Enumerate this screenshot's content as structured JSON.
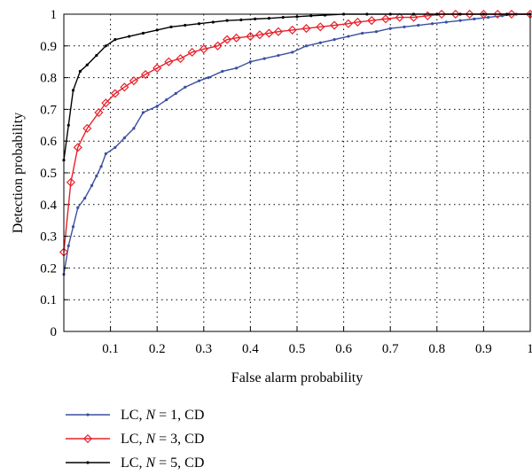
{
  "chart_data": {
    "type": "line",
    "title": "",
    "xlabel": "False alarm probability",
    "ylabel": "Detection probability",
    "xlim": [
      0,
      1
    ],
    "ylim": [
      0,
      1
    ],
    "xticks": [
      "0.1",
      "0.2",
      "0.3",
      "0.4",
      "0.5",
      "0.6",
      "0.7",
      "0.8",
      "0.9",
      "1"
    ],
    "yticks": [
      "0",
      "0.1",
      "0.2",
      "0.3",
      "0.4",
      "0.5",
      "0.6",
      "0.7",
      "0.8",
      "0.9",
      "1"
    ],
    "grid": true,
    "legend_position": "below",
    "series": [
      {
        "name": "LC, N = 1, CD",
        "legend_prefix": "LC, ",
        "legend_var": "N",
        "legend_suffix": " = 1, CD",
        "color": "#3b4fa0",
        "marker": "dot",
        "points": [
          [
            0.0,
            0.18
          ],
          [
            0.01,
            0.27
          ],
          [
            0.02,
            0.33
          ],
          [
            0.03,
            0.39
          ],
          [
            0.045,
            0.42
          ],
          [
            0.06,
            0.46
          ],
          [
            0.07,
            0.49
          ],
          [
            0.08,
            0.52
          ],
          [
            0.09,
            0.56
          ],
          [
            0.11,
            0.58
          ],
          [
            0.13,
            0.61
          ],
          [
            0.15,
            0.64
          ],
          [
            0.17,
            0.69
          ],
          [
            0.2,
            0.71
          ],
          [
            0.22,
            0.73
          ],
          [
            0.24,
            0.75
          ],
          [
            0.26,
            0.77
          ],
          [
            0.29,
            0.79
          ],
          [
            0.31,
            0.8
          ],
          [
            0.34,
            0.82
          ],
          [
            0.37,
            0.83
          ],
          [
            0.4,
            0.85
          ],
          [
            0.43,
            0.86
          ],
          [
            0.46,
            0.87
          ],
          [
            0.49,
            0.88
          ],
          [
            0.52,
            0.9
          ],
          [
            0.55,
            0.91
          ],
          [
            0.58,
            0.92
          ],
          [
            0.61,
            0.93
          ],
          [
            0.64,
            0.94
          ],
          [
            0.67,
            0.945
          ],
          [
            0.7,
            0.955
          ],
          [
            0.73,
            0.96
          ],
          [
            0.76,
            0.965
          ],
          [
            0.79,
            0.97
          ],
          [
            0.82,
            0.975
          ],
          [
            0.85,
            0.98
          ],
          [
            0.88,
            0.985
          ],
          [
            0.91,
            0.99
          ],
          [
            0.94,
            0.995
          ],
          [
            0.97,
            1.0
          ],
          [
            1.0,
            1.0
          ]
        ]
      },
      {
        "name": "LC, N = 3, CD",
        "legend_prefix": "LC, ",
        "legend_var": "N",
        "legend_suffix": " = 3, CD",
        "color": "#e8202a",
        "marker": "diamond",
        "points": [
          [
            0.0,
            0.25
          ],
          [
            0.015,
            0.47
          ],
          [
            0.03,
            0.58
          ],
          [
            0.05,
            0.64
          ],
          [
            0.075,
            0.69
          ],
          [
            0.09,
            0.72
          ],
          [
            0.11,
            0.75
          ],
          [
            0.13,
            0.77
          ],
          [
            0.15,
            0.79
          ],
          [
            0.175,
            0.81
          ],
          [
            0.2,
            0.83
          ],
          [
            0.225,
            0.85
          ],
          [
            0.25,
            0.86
          ],
          [
            0.275,
            0.88
          ],
          [
            0.3,
            0.89
          ],
          [
            0.33,
            0.9
          ],
          [
            0.35,
            0.92
          ],
          [
            0.37,
            0.925
          ],
          [
            0.4,
            0.93
          ],
          [
            0.42,
            0.935
          ],
          [
            0.44,
            0.94
          ],
          [
            0.46,
            0.945
          ],
          [
            0.49,
            0.95
          ],
          [
            0.52,
            0.955
          ],
          [
            0.55,
            0.96
          ],
          [
            0.58,
            0.965
          ],
          [
            0.61,
            0.97
          ],
          [
            0.63,
            0.975
          ],
          [
            0.66,
            0.98
          ],
          [
            0.69,
            0.985
          ],
          [
            0.72,
            0.99
          ],
          [
            0.75,
            0.99
          ],
          [
            0.78,
            0.995
          ],
          [
            0.81,
            1.0
          ],
          [
            0.84,
            1.0
          ],
          [
            0.87,
            1.0
          ],
          [
            0.9,
            1.0
          ],
          [
            0.93,
            1.0
          ],
          [
            0.96,
            1.0
          ],
          [
            1.0,
            1.0
          ]
        ]
      },
      {
        "name": "LC, N = 5, CD",
        "legend_prefix": "LC, ",
        "legend_var": "N",
        "legend_suffix": " = 5, CD",
        "color": "#000000",
        "marker": "dot",
        "points": [
          [
            0.0,
            0.54
          ],
          [
            0.01,
            0.65
          ],
          [
            0.02,
            0.76
          ],
          [
            0.035,
            0.82
          ],
          [
            0.05,
            0.84
          ],
          [
            0.07,
            0.87
          ],
          [
            0.09,
            0.9
          ],
          [
            0.11,
            0.92
          ],
          [
            0.14,
            0.93
          ],
          [
            0.17,
            0.94
          ],
          [
            0.2,
            0.95
          ],
          [
            0.23,
            0.96
          ],
          [
            0.26,
            0.965
          ],
          [
            0.29,
            0.97
          ],
          [
            0.32,
            0.975
          ],
          [
            0.35,
            0.98
          ],
          [
            0.38,
            0.982
          ],
          [
            0.41,
            0.985
          ],
          [
            0.44,
            0.987
          ],
          [
            0.47,
            0.99
          ],
          [
            0.5,
            0.992
          ],
          [
            0.53,
            0.995
          ],
          [
            0.56,
            0.997
          ],
          [
            0.6,
            1.0
          ],
          [
            0.65,
            1.0
          ],
          [
            0.7,
            1.0
          ],
          [
            0.75,
            1.0
          ],
          [
            0.8,
            1.0
          ],
          [
            0.85,
            1.0
          ],
          [
            0.9,
            1.0
          ],
          [
            0.95,
            1.0
          ],
          [
            1.0,
            1.0
          ]
        ]
      }
    ]
  }
}
